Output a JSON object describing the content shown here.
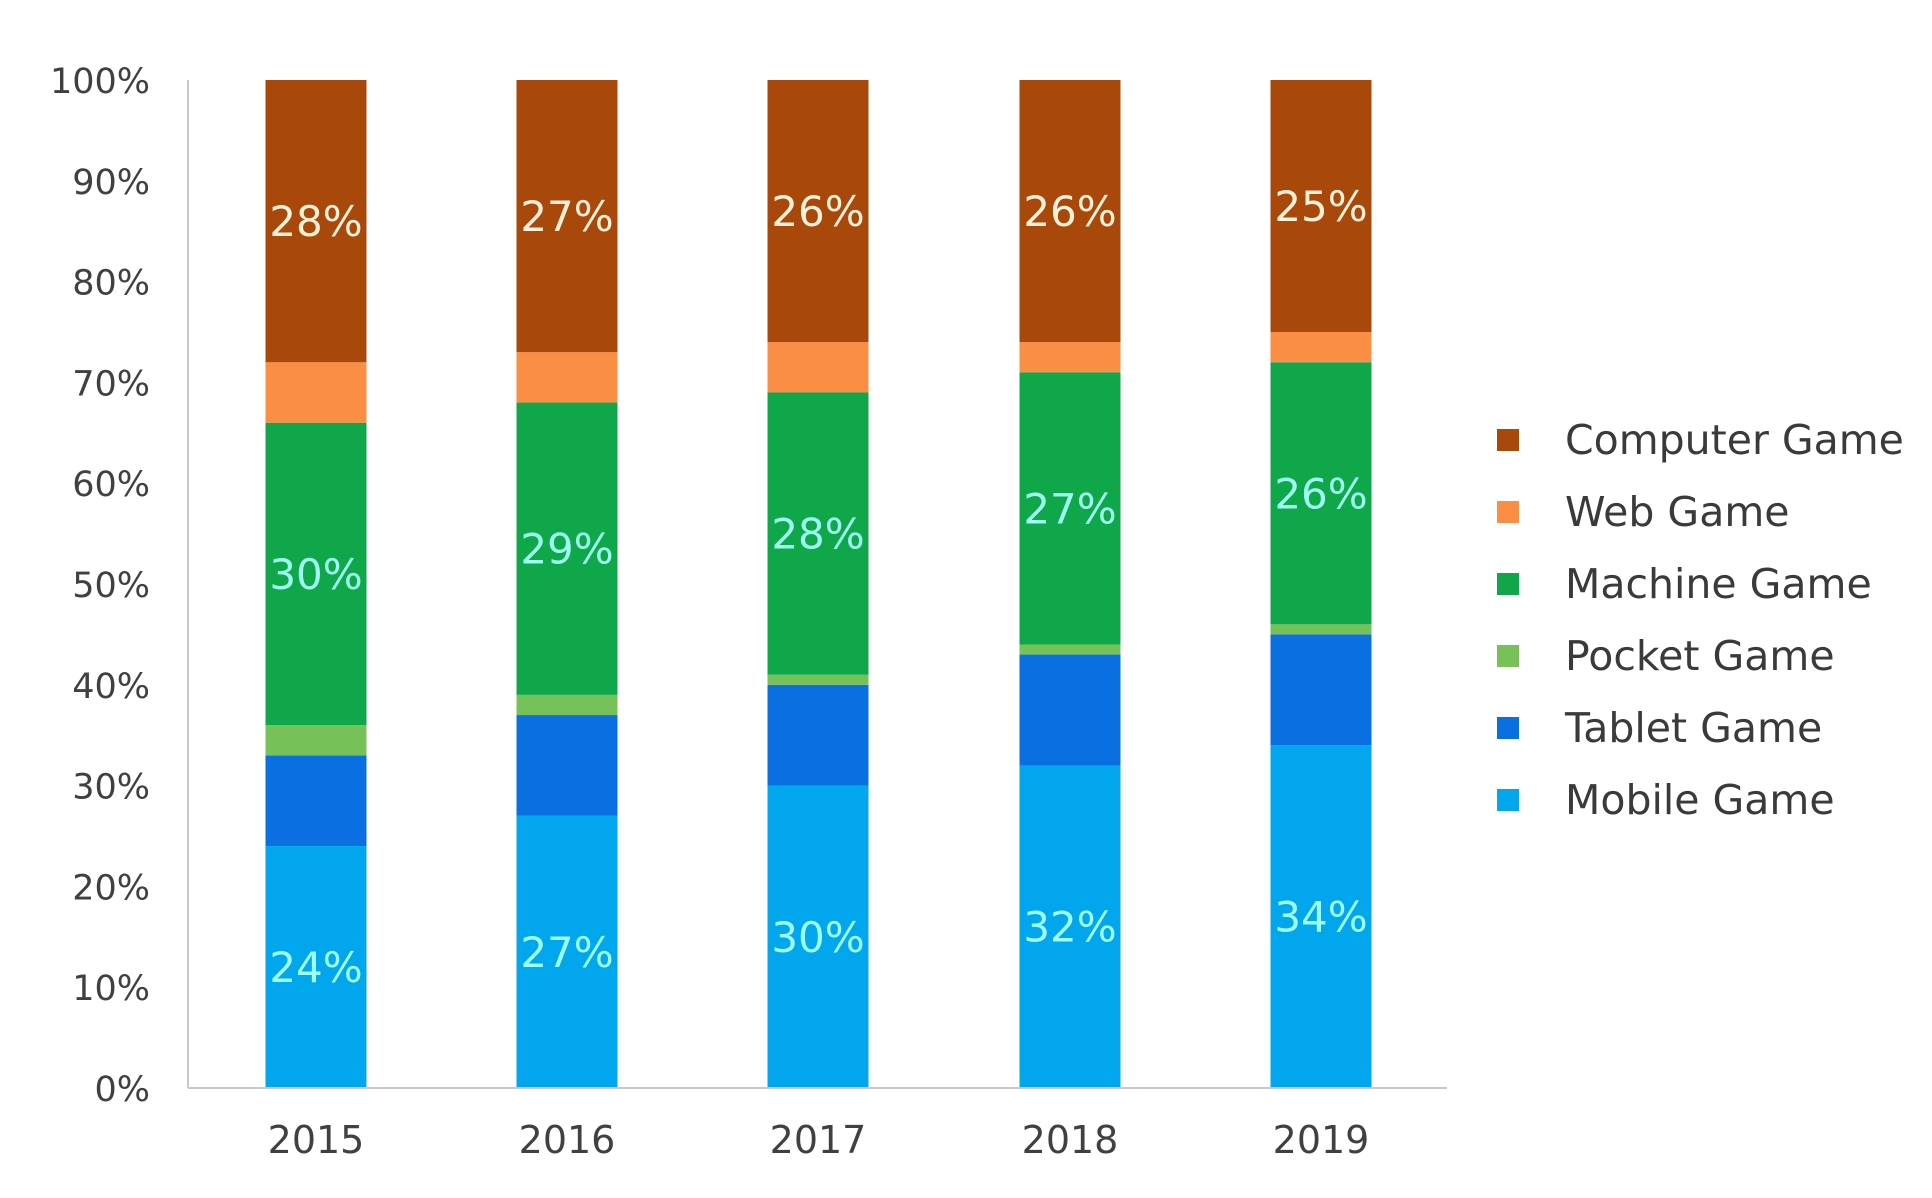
{
  "chart_data": {
    "type": "bar",
    "stacked": true,
    "percent_stacked": true,
    "title": "",
    "xlabel": "",
    "ylabel": "",
    "categories": [
      "2015",
      "2016",
      "2017",
      "2018",
      "2019"
    ],
    "ylim": [
      0,
      100
    ],
    "y_ticks": [
      0,
      10,
      20,
      30,
      40,
      50,
      60,
      70,
      80,
      90,
      100
    ],
    "y_tick_labels": [
      "0%",
      "10%",
      "20%",
      "30%",
      "40%",
      "50%",
      "60%",
      "70%",
      "80%",
      "90%",
      "100%"
    ],
    "grid": false,
    "legend_position": "right",
    "series": [
      {
        "name": "Mobile Game",
        "color": "#02A6EC",
        "values": [
          24,
          27,
          30,
          32,
          34
        ],
        "labels": [
          "24%",
          "27%",
          "30%",
          "32%",
          "34%"
        ],
        "label_color": "#9EFFF2"
      },
      {
        "name": "Tablet Game",
        "color": "#0A6FE0",
        "values": [
          9,
          10,
          10,
          11,
          11
        ],
        "labels": [
          "",
          "",
          "",
          "",
          ""
        ]
      },
      {
        "name": "Pocket Game",
        "color": "#76C258",
        "values": [
          3,
          2,
          1,
          1,
          1
        ],
        "labels": [
          "",
          "",
          "",
          "",
          ""
        ]
      },
      {
        "name": "Machine Game",
        "color": "#10A64A",
        "values": [
          30,
          29,
          28,
          27,
          26
        ],
        "labels": [
          "30%",
          "29%",
          "28%",
          "27%",
          "26%"
        ],
        "label_color": "#9EFFF2"
      },
      {
        "name": "Web Game",
        "color": "#FA8E45",
        "values": [
          6,
          5,
          5,
          3,
          3
        ],
        "labels": [
          "",
          "",
          "",
          "",
          ""
        ]
      },
      {
        "name": "Computer Game",
        "color": "#A8480A",
        "values": [
          28,
          27,
          26,
          26,
          25
        ],
        "labels": [
          "28%",
          "27%",
          "26%",
          "26%",
          "25%"
        ],
        "label_color": "#FFF1DA"
      }
    ],
    "legend_order": [
      "Computer Game",
      "Web Game",
      "Machine Game",
      "Pocket Game",
      "Tablet Game",
      "Mobile Game"
    ],
    "axis_color": "#C8C8C8",
    "tick_label_color": "#404040",
    "legend_text_color": "#3a3a3a"
  }
}
